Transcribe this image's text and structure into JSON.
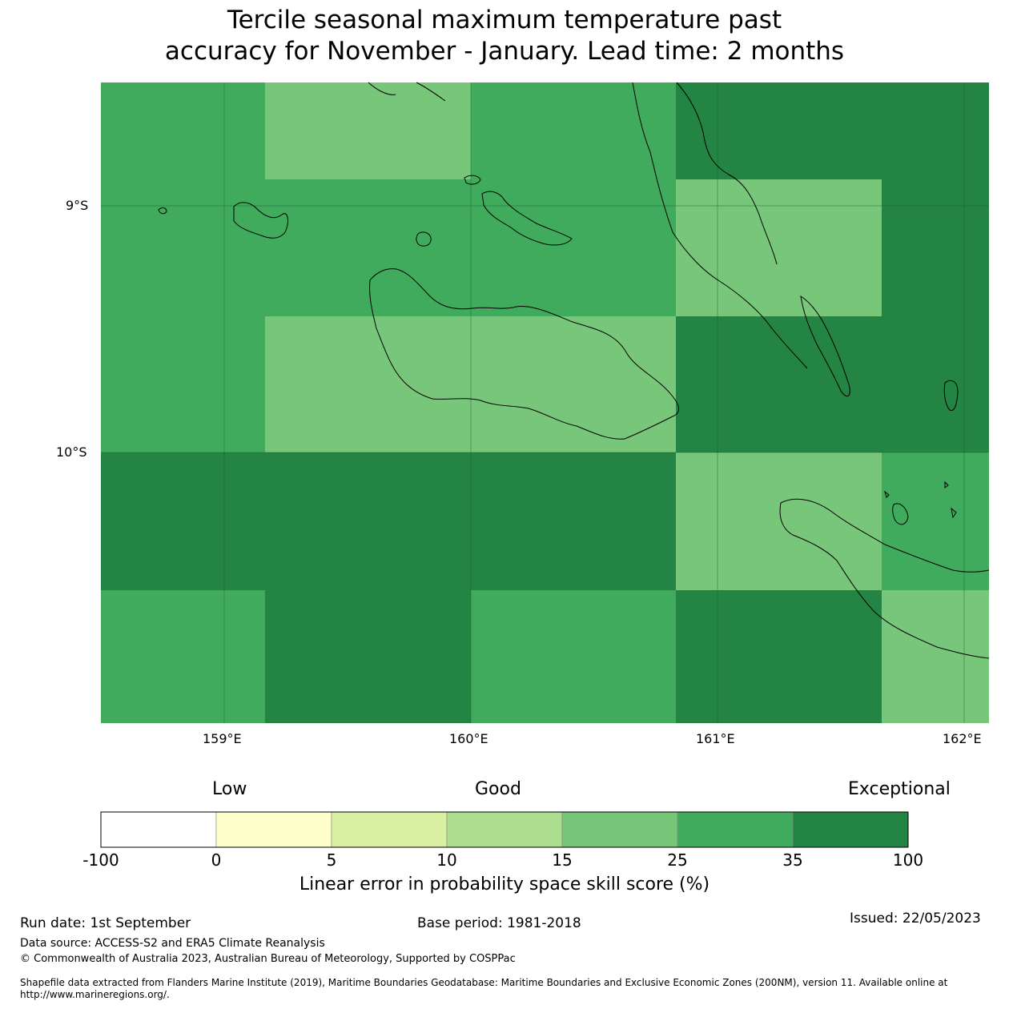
{
  "title_line1": "Tercile seasonal maximum temperature past",
  "title_line2": "accuracy for November - January. Lead time: 2 months",
  "map": {
    "lat_labels": [
      "9°S",
      "10°S"
    ],
    "lon_labels": [
      "159°E",
      "160°E",
      "161°E",
      "162°E"
    ],
    "colors": {
      "score_15_25": "#78c679",
      "score_25_35": "#41ab5d",
      "score_35_100": "#238443"
    },
    "grid_rows": [
      [
        "25-35",
        "15-25",
        "15-25",
        "25-35",
        "35-100",
        "35-100"
      ],
      [
        "25-35",
        "25-35",
        "25-35",
        "25-35",
        "15-25",
        "35-100"
      ],
      [
        "25-35",
        "15-25",
        "15-25",
        "15-25",
        "35-100",
        "35-100"
      ],
      [
        "35-100",
        "35-100",
        "35-100",
        "35-100",
        "15-25",
        "25-35"
      ],
      [
        "25-35",
        "35-100",
        "35-100",
        "25-35",
        "35-100",
        "15-25"
      ]
    ]
  },
  "legend": {
    "category_low": "Low",
    "category_good": "Good",
    "category_exceptional": "Exceptional",
    "ticks": [
      "-100",
      "0",
      "5",
      "10",
      "15",
      "25",
      "35",
      "100"
    ],
    "colors": [
      "#ffffff",
      "#ffffcc",
      "#d9f0a3",
      "#addd8e",
      "#78c679",
      "#41ab5d",
      "#238443"
    ],
    "label": "Linear error in probability space skill score (%)"
  },
  "footer": {
    "run_date": "Run date: 1st September",
    "base_period": "Base period: 1981-2018",
    "issued": "Issued: 22/05/2023",
    "data_source": "Data source: ACCESS-S2 and ERA5 Climate Reanalysis",
    "copyright": "© Commonwealth of Australia 2023, Australian Bureau of Meteorology, Supported by COSPPac",
    "shapefile": "Shapefile data extracted from Flanders Marine Institute (2019), Maritime Boundaries Geodatabase: Maritime Boundaries and Exclusive Economic Zones (200NM), version 11. Available online at http://www.marineregions.org/."
  }
}
